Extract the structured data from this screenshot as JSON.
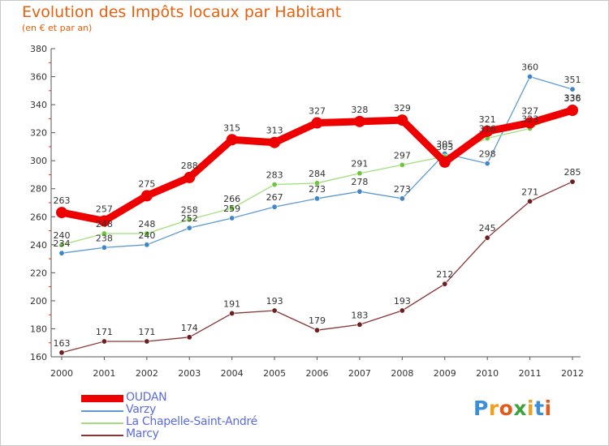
{
  "title": "Evolution des Impôts locaux par Habitant",
  "subtitle": "(en € et par an)",
  "logo": {
    "text": "Proxiti",
    "letter_colors": [
      "#3a8fd8",
      "#f0a020",
      "#e05c1c",
      "#3da33d",
      "#f0a020",
      "#3a8fd8",
      "#e05c1c"
    ]
  },
  "chart_data": {
    "type": "line",
    "title": "Evolution des Impôts locaux par Habitant",
    "subtitle": "(en € et par an)",
    "categories": [
      "2000",
      "2001",
      "2002",
      "2003",
      "2004",
      "2005",
      "2006",
      "2007",
      "2008",
      "2009",
      "2010",
      "2011",
      "2012"
    ],
    "ylim": [
      160,
      380
    ],
    "yticks": [
      160,
      180,
      200,
      220,
      240,
      260,
      280,
      300,
      320,
      340,
      360,
      380
    ],
    "grid": false,
    "legend_position": "bottom-left",
    "series": [
      {
        "name": "OUDAN",
        "color": "#ee0000",
        "marker": "#ee0000",
        "values": [
          263,
          257,
          275,
          288,
          315,
          313,
          327,
          328,
          329,
          299,
          321,
          327,
          336
        ],
        "labels": [
          "263",
          "257",
          "275",
          "288",
          "315",
          "313",
          "327",
          "328",
          "329",
          "",
          "321",
          "327",
          "336"
        ]
      },
      {
        "name": "Varzy",
        "color": "#5e9ad2",
        "marker": "#3f86c8",
        "values": [
          234,
          238,
          240,
          252,
          259,
          267,
          273,
          278,
          273,
          305,
          298,
          360,
          351
        ],
        "labels": [
          "234",
          "238",
          "240",
          "252",
          "259",
          "267",
          "273",
          "278",
          "273",
          "305",
          "298",
          "360",
          "351"
        ]
      },
      {
        "name": "La Chapelle-Saint-André",
        "color": "#9ee07a",
        "marker": "#6cc63e",
        "values": [
          240,
          248,
          248,
          258,
          266,
          283,
          284,
          291,
          297,
          303,
          316,
          323,
          338
        ],
        "labels": [
          "240",
          "248",
          "248",
          "258",
          "266",
          "283",
          "284",
          "291",
          "297",
          "303",
          "316",
          "323",
          "338"
        ]
      },
      {
        "name": "Marcy",
        "color": "#8a3535",
        "marker": "#6e1f1f",
        "values": [
          163,
          171,
          171,
          174,
          191,
          193,
          179,
          183,
          193,
          212,
          245,
          271,
          285
        ],
        "labels": [
          "163",
          "171",
          "171",
          "174",
          "191",
          "193",
          "179",
          "183",
          "193",
          "212",
          "245",
          "271",
          "285"
        ]
      }
    ]
  }
}
